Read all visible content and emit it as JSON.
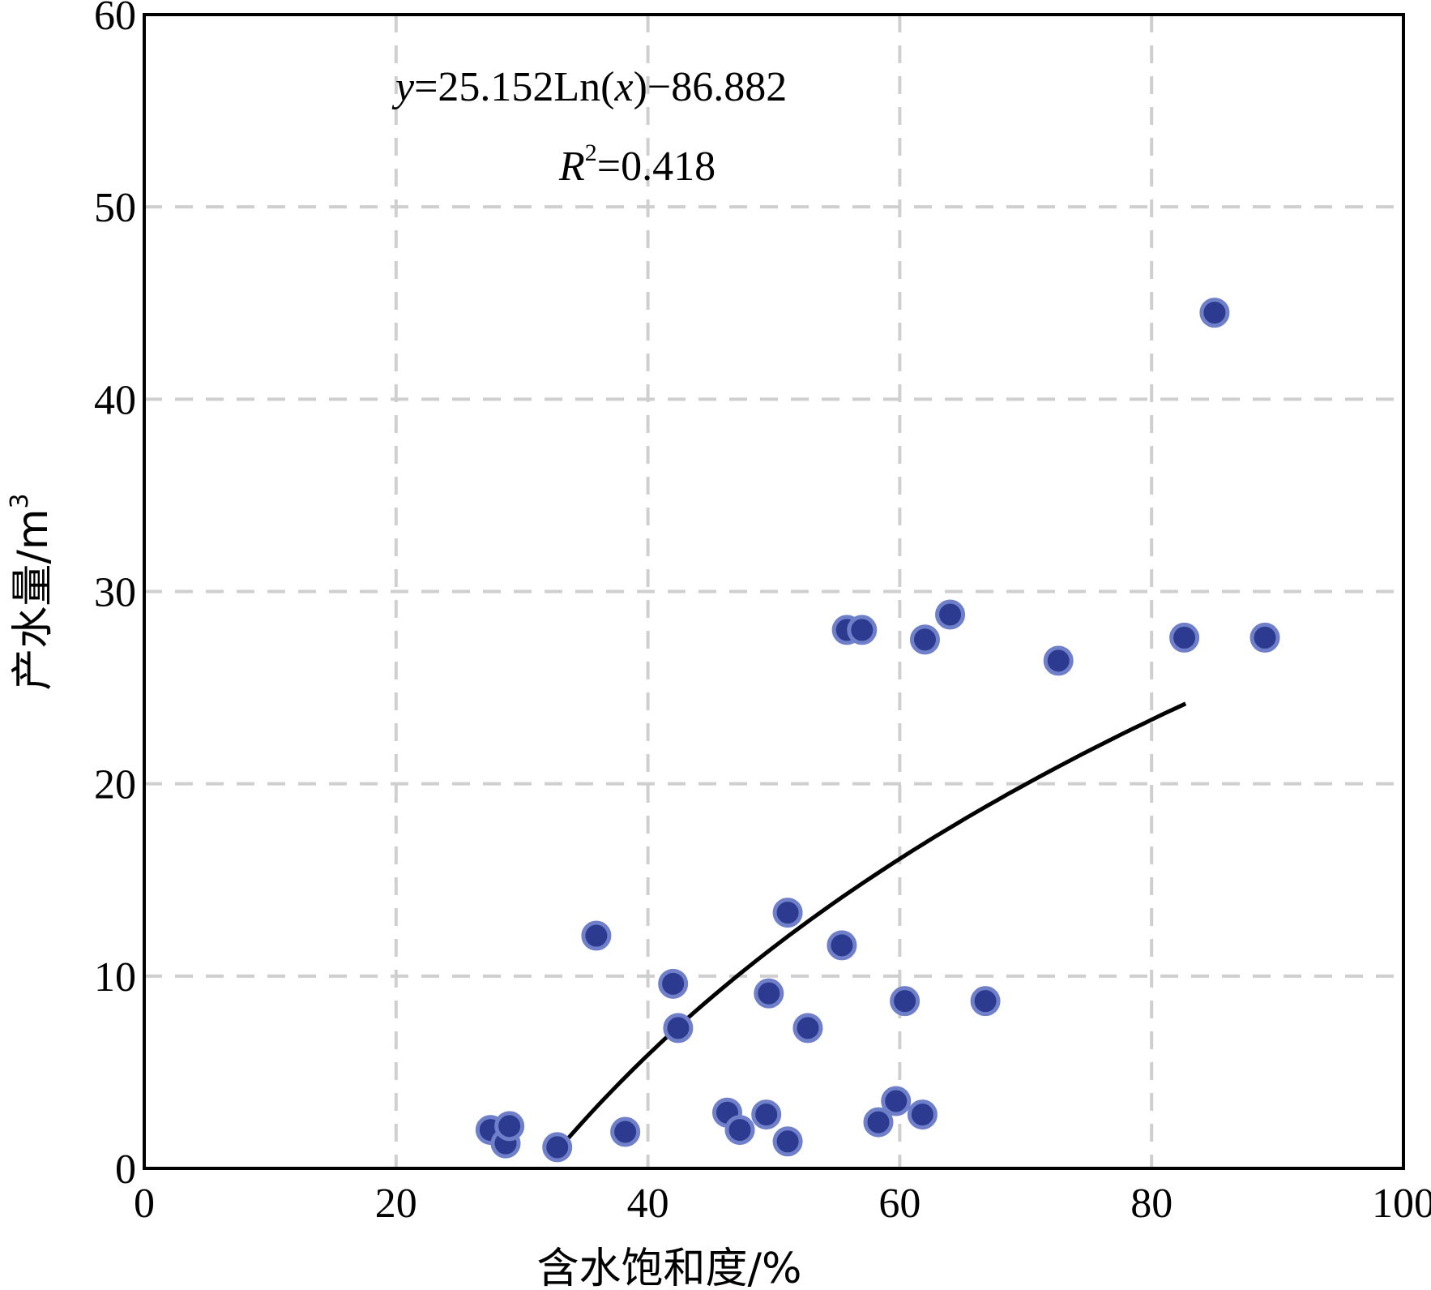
{
  "chart_data": {
    "type": "scatter",
    "xlabel": "含水饱和度/%",
    "ylabel_main": "产水量/m",
    "ylabel_sup": "3",
    "xlim": [
      0,
      100
    ],
    "ylim": [
      0,
      60
    ],
    "xticks": [
      "0",
      "20",
      "40",
      "60",
      "80",
      "100"
    ],
    "yticks": [
      "0",
      "10",
      "20",
      "30",
      "40",
      "50",
      "60"
    ],
    "grid": true,
    "series": [
      {
        "points": [
          [
            27.5,
            2.0
          ],
          [
            28.7,
            1.3
          ],
          [
            29.0,
            2.2
          ],
          [
            32.8,
            1.1
          ],
          [
            35.9,
            12.1
          ],
          [
            38.2,
            1.9
          ],
          [
            42.0,
            9.6
          ],
          [
            42.4,
            7.3
          ],
          [
            46.3,
            2.9
          ],
          [
            47.3,
            2.0
          ],
          [
            49.4,
            2.8
          ],
          [
            49.6,
            9.1
          ],
          [
            51.1,
            13.3
          ],
          [
            51.1,
            1.4
          ],
          [
            52.7,
            7.3
          ],
          [
            55.4,
            11.6
          ],
          [
            55.8,
            28.0
          ],
          [
            57.0,
            28.0
          ],
          [
            58.3,
            2.4
          ],
          [
            59.7,
            3.5
          ],
          [
            60.4,
            8.7
          ],
          [
            61.8,
            2.8
          ],
          [
            62.0,
            27.5
          ],
          [
            64.0,
            28.8
          ],
          [
            66.8,
            8.7
          ],
          [
            72.6,
            26.4
          ],
          [
            82.6,
            27.6
          ],
          [
            85.0,
            44.5
          ],
          [
            89.0,
            27.6
          ]
        ]
      }
    ],
    "trendline": {
      "type": "log",
      "a": 25.152,
      "b": -86.882,
      "x_range": [
        33,
        82.7
      ],
      "equation_y": "y",
      "equation_rest": "=25.152Ln(",
      "equation_x": "x",
      "equation_end": ")−86.882",
      "r2_r": "R",
      "r2_sup": "2",
      "r2_value": "=0.418"
    },
    "colors": {
      "point_fill": "#2c3a8f",
      "point_edge": "#6f7fc9",
      "grid": "#cfcfcf",
      "trend": "#000000"
    }
  }
}
